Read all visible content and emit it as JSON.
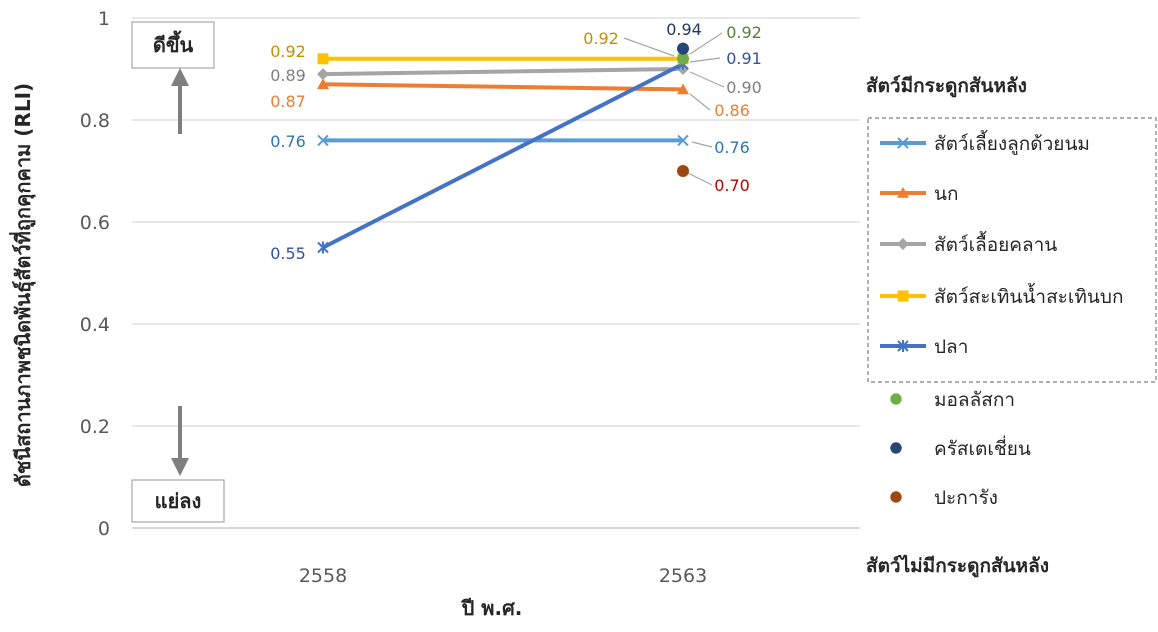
{
  "chart_data": {
    "type": "line",
    "xlabel": "ปี พ.ศ.",
    "ylabel": "ดัชนีสถานภาพชนิดพันธุ์สัตว์ที่ถูกคุกคาม (RLI)",
    "categories": [
      "2558",
      "2563"
    ],
    "ylim": [
      0,
      1
    ],
    "yticks": [
      "0",
      "0.2",
      "0.4",
      "0.6",
      "0.8",
      "1"
    ],
    "grid": true,
    "legend_position": "right",
    "series": [
      {
        "name": "สัตว์เลี้ยงลูกด้วยนม",
        "group": "vertebrate",
        "values": [
          0.76,
          0.76
        ],
        "labels": [
          "0.76",
          "0.76"
        ],
        "color": "#5B9BD5",
        "marker": "x"
      },
      {
        "name": "นก",
        "group": "vertebrate",
        "values": [
          0.87,
          0.86
        ],
        "labels": [
          "0.87",
          "0.86"
        ],
        "color": "#ED7D31",
        "marker": "triangle"
      },
      {
        "name": "สัตว์เลื้อยคลาน",
        "group": "vertebrate",
        "values": [
          0.89,
          0.9
        ],
        "labels": [
          "0.89",
          "0.90"
        ],
        "color": "#A5A5A5",
        "marker": "diamond"
      },
      {
        "name": "สัตว์สะเทินน้ำสะเทินบก",
        "group": "vertebrate",
        "values": [
          0.92,
          0.92
        ],
        "labels": [
          "0.92",
          "0.92"
        ],
        "color": "#FFC000",
        "marker": "square"
      },
      {
        "name": "ปลา",
        "group": "vertebrate",
        "values": [
          0.55,
          0.91
        ],
        "labels": [
          "0.55",
          "0.91"
        ],
        "color": "#4472C4",
        "marker": "star"
      },
      {
        "name": "มอลลัสกา",
        "group": "invertebrate",
        "values": [
          null,
          0.92
        ],
        "labels": [
          "",
          "0.92"
        ],
        "color": "#70AD47",
        "marker": "circle"
      },
      {
        "name": "ครัสเตเชี่ยน",
        "group": "invertebrate",
        "values": [
          null,
          0.94
        ],
        "labels": [
          "",
          "0.94"
        ],
        "color": "#264478",
        "marker": "circle"
      },
      {
        "name": "ปะการัง",
        "group": "invertebrate",
        "values": [
          null,
          0.7
        ],
        "labels": [
          "",
          "0.70"
        ],
        "color": "#9E480E",
        "marker": "circle"
      }
    ],
    "legend_groups": {
      "vertebrate": "สัตว์มีกระดูกสันหลัง",
      "invertebrate": "สัตว์ไม่มีกระดูกสันหลัง"
    },
    "annotations": {
      "better": "ดีขึ้น",
      "worse": "แย่ลง"
    },
    "data_label_colors": {
      "สัตว์เลี้ยงลูกด้วยนม": "#2E75B6",
      "นก": "#ED7D31",
      "สัตว์เลื้อยคลาน": "#7F7F7F",
      "สัตว์สะเทินน้ำสะเทินบก": "#BF9000",
      "ปลา": "#2F5597",
      "มอลลัสกา": "#548235",
      "ครัสเตเชี่ยน": "#1F3864",
      "ปะการัง": "#C00000"
    }
  }
}
